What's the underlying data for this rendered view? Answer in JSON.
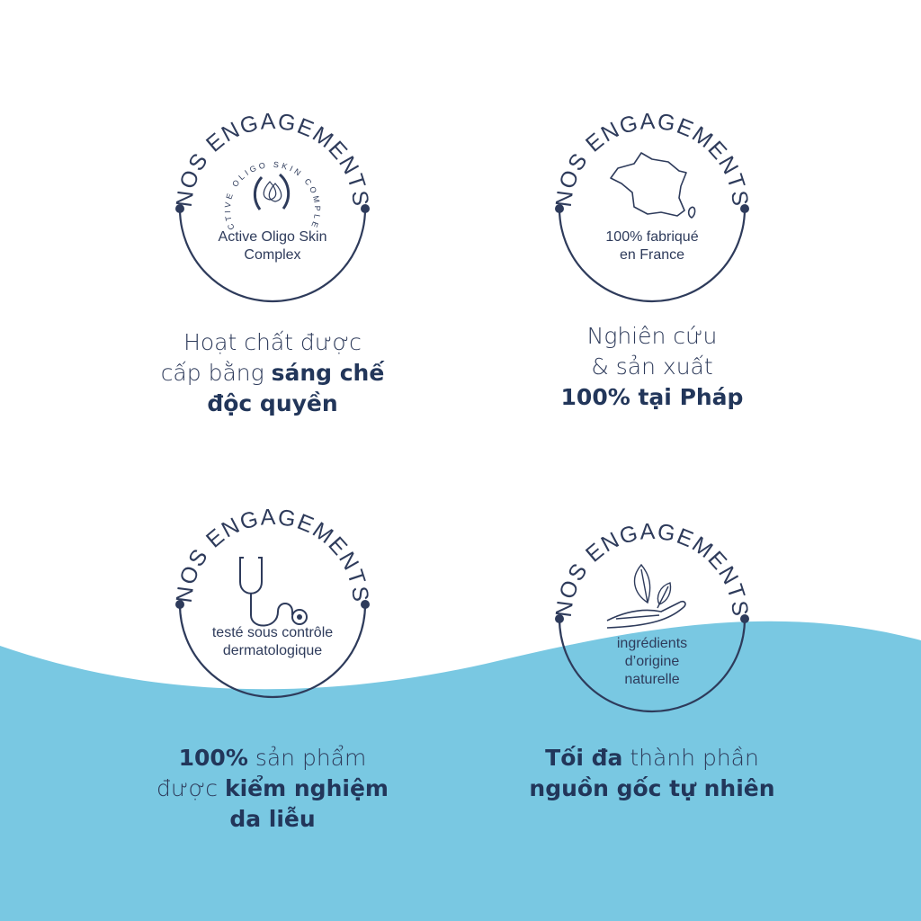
{
  "colors": {
    "navy": "#2e3b5b",
    "wave": "#79c8e2",
    "background": "#ffffff"
  },
  "badges": [
    {
      "arc_text": "NOS ENGAGEMENTS",
      "icon": "active-oligo-skin-complex-logo-icon",
      "logo_ring_text": "ACTIVE OLIGO SKIN COMPLEX",
      "label_lines": [
        "Active Oligo Skin",
        "Complex"
      ]
    },
    {
      "arc_text": "NOS ENGAGEMENTS",
      "icon": "france-map-icon",
      "label_lines": [
        "100% fabriqué",
        "en France"
      ]
    },
    {
      "arc_text": "NOS ENGAGEMENTS",
      "icon": "stethoscope-icon",
      "label_lines": [
        "testé sous contrôle",
        "dermatologique"
      ]
    },
    {
      "arc_text": "NOS ENGAGEMENTS",
      "icon": "hand-with-leaves-icon",
      "label_lines": [
        "ingrédients",
        "d’origine",
        "naturelle"
      ]
    }
  ],
  "captions": [
    {
      "lines": [
        [
          {
            "t": "Hoạt chất được",
            "b": false
          }
        ],
        [
          {
            "t": "cấp bằng ",
            "b": false
          },
          {
            "t": "sáng chế",
            "b": true
          }
        ],
        [
          {
            "t": "độc quyền",
            "b": true
          }
        ]
      ]
    },
    {
      "lines": [
        [
          {
            "t": "Nghiên cứu",
            "b": false
          }
        ],
        [
          {
            "t": "& sản xuất",
            "b": false
          }
        ],
        [
          {
            "t": "100% tại Pháp",
            "b": true
          }
        ]
      ]
    },
    {
      "lines": [
        [
          {
            "t": "100%",
            "b": true
          },
          {
            "t": " sản phẩm",
            "b": false
          }
        ],
        [
          {
            "t": "được ",
            "b": false
          },
          {
            "t": "kiểm nghiệm",
            "b": true
          }
        ],
        [
          {
            "t": "da liễu",
            "b": true
          }
        ]
      ]
    },
    {
      "lines": [
        [
          {
            "t": "Tối đa",
            "b": true
          },
          {
            "t": " thành phần",
            "b": false
          }
        ],
        [
          {
            "t": "nguồn gốc tự nhiên",
            "b": true
          }
        ]
      ]
    }
  ]
}
